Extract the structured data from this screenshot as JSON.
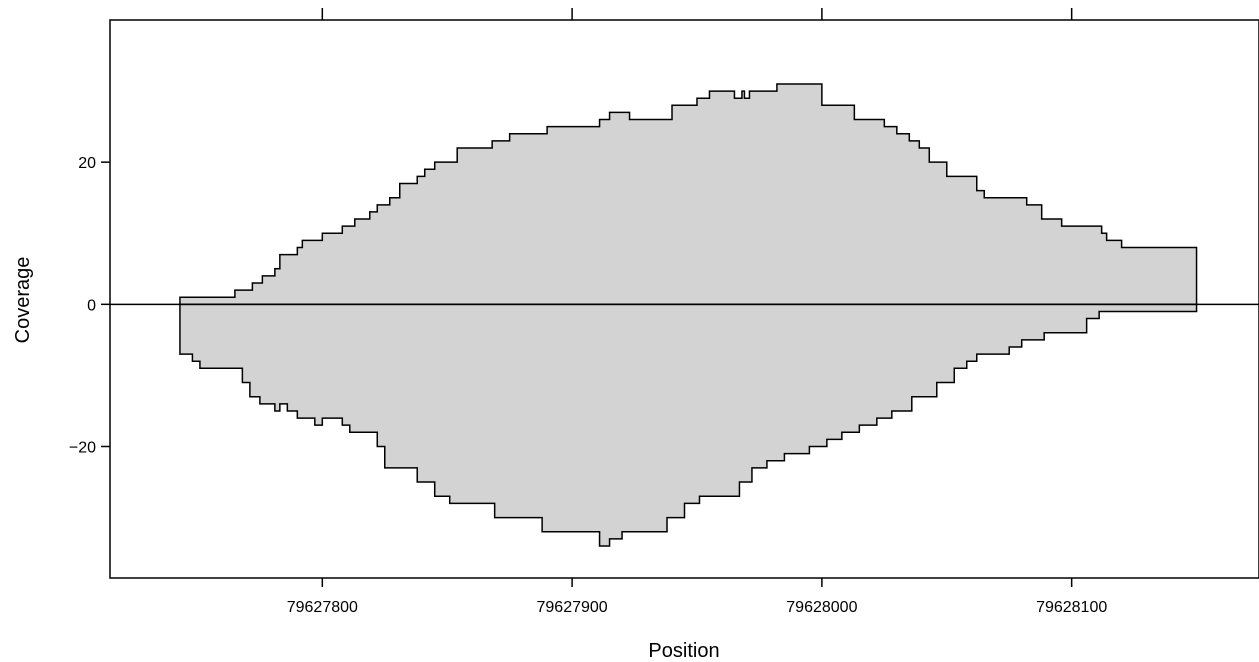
{
  "chart_data": {
    "type": "area",
    "xlabel": "Position",
    "ylabel": "Coverage",
    "xlim": [
      79627715,
      79628175
    ],
    "ylim": [
      -38.5,
      40
    ],
    "x_ticks": [
      79627800,
      79627900,
      79628000,
      79628100
    ],
    "x_tick_labels": [
      "79627800",
      "79627900",
      "79628000",
      "79628100"
    ],
    "y_ticks": [
      -20,
      0,
      20
    ],
    "y_tick_labels": [
      "−20",
      "0",
      "20"
    ],
    "grid": false,
    "fill_color": "#d3d3d3",
    "line_color": "#000000",
    "series": [
      {
        "x": [
          79627743,
          79627765,
          79627772,
          79627776,
          79627781,
          79627783,
          79627786,
          79627790,
          79627792,
          79627795,
          79627800,
          79627806,
          79627808,
          79627813,
          79627819,
          79627822,
          79627827,
          79627831,
          79627834,
          79627838,
          79627841,
          79627845,
          79627848,
          79627850,
          79627854,
          79627865,
          79627868,
          79627875,
          79627887,
          79627890,
          79627895,
          79627911,
          79627915,
          79627920,
          79627923,
          79627927,
          79627940,
          79627950,
          79627955,
          79627962,
          79627965,
          79627968,
          79627969,
          79627971,
          79627978,
          79627982,
          79627992,
          79628000,
          79628008,
          79628013,
          79628018,
          79628025,
          79628030,
          79628035,
          79628039,
          79628043,
          79628050,
          79628062,
          79628065,
          79628082,
          79628088,
          79628096,
          79628112,
          79628114,
          79628120,
          79628150
        ],
        "y": [
          1,
          2,
          3,
          4,
          5,
          7,
          7,
          8,
          9,
          9,
          10,
          10,
          11,
          12,
          13,
          14,
          15,
          17,
          17,
          18,
          19,
          20,
          20,
          20,
          22,
          22,
          23,
          24,
          24,
          25,
          25,
          26,
          27,
          27,
          26,
          26,
          28,
          29,
          30,
          30,
          29,
          30,
          29,
          30,
          30,
          31,
          31,
          28,
          28,
          26,
          26,
          25,
          24,
          23,
          22,
          20,
          18,
          16,
          15,
          14,
          12,
          11,
          10,
          9,
          8,
          8
        ]
      },
      {
        "x": [
          79627743,
          79627748,
          79627751,
          79627765,
          79627768,
          79627771,
          79627775,
          79627779,
          79627781,
          79627783,
          79627786,
          79627790,
          79627793,
          79627797,
          79627800,
          79627803,
          79627806,
          79627808,
          79627811,
          79627815,
          79627822,
          79627825,
          79627831,
          79627838,
          79627845,
          79627851,
          79627855,
          79627859,
          79627862,
          79627869,
          79627878,
          79627888,
          79627890,
          79627907,
          79627911,
          79627915,
          79627920,
          79627932,
          79627938,
          79627945,
          79627951,
          79627955,
          79627962,
          79627967,
          79627972,
          79627978,
          79627985,
          79627995,
          79628002,
          79628008,
          79628015,
          79628022,
          79628028,
          79628036,
          79628046,
          79628053,
          79628058,
          79628062,
          79628075,
          79628080,
          79628089,
          79628106,
          79628111,
          79628150
        ],
        "y": [
          -7,
          -8,
          -9,
          -9,
          -11,
          -13,
          -14,
          -14,
          -15,
          -14,
          -15,
          -16,
          -16,
          -17,
          -16,
          -16,
          -16,
          -17,
          -18,
          -18,
          -20,
          -23,
          -23,
          -25,
          -27,
          -28,
          -28,
          -28,
          -28,
          -30,
          -30,
          -32,
          -32,
          -32,
          -34,
          -33,
          -32,
          -32,
          -30,
          -28,
          -27,
          -27,
          -27,
          -25,
          -23,
          -22,
          -21,
          -20,
          -19,
          -18,
          -17,
          -16,
          -15,
          -13,
          -11,
          -9,
          -8,
          -7,
          -6,
          -5,
          -4,
          -2,
          -1,
          0
        ]
      }
    ]
  }
}
